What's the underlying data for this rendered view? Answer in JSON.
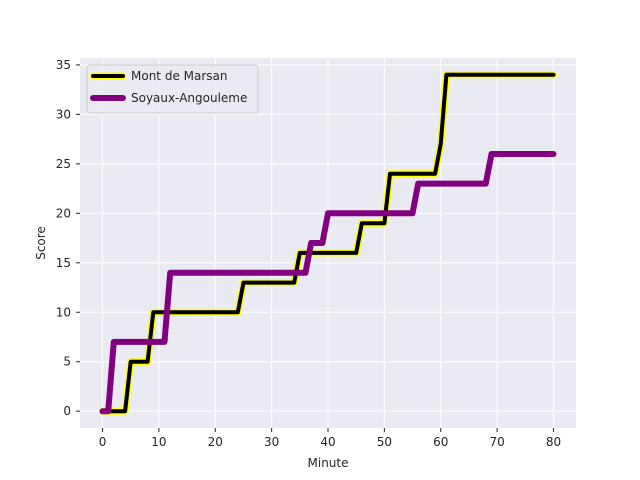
{
  "chart_data": {
    "type": "line",
    "xlabel": "Minute",
    "ylabel": "Score",
    "xlim": [
      -4,
      84
    ],
    "ylim": [
      -1.7,
      35.7
    ],
    "xticks": [
      0,
      10,
      20,
      30,
      40,
      50,
      60,
      70,
      80
    ],
    "yticks": [
      0,
      5,
      10,
      15,
      20,
      25,
      30,
      35
    ],
    "grid": true,
    "legend_position": "top-left",
    "series": [
      {
        "name": "Mont de Marsan",
        "color": "#000000",
        "outline_color": "#ffff00",
        "x": [
          0,
          1,
          4,
          5,
          8,
          9,
          24,
          25,
          34,
          35,
          45,
          46,
          50,
          51,
          59,
          60,
          61,
          80
        ],
        "y": [
          0,
          0,
          0,
          5,
          5,
          10,
          10,
          13,
          13,
          16,
          16,
          19,
          19,
          24,
          24,
          27,
          34,
          34
        ]
      },
      {
        "name": "Soyaux-Angouleme",
        "color": "#800080",
        "x": [
          0,
          1,
          2,
          11,
          12,
          36,
          37,
          39,
          40,
          55,
          56,
          68,
          69,
          80
        ],
        "y": [
          0,
          0,
          7,
          7,
          14,
          14,
          17,
          17,
          20,
          20,
          23,
          23,
          26,
          26
        ]
      }
    ]
  }
}
